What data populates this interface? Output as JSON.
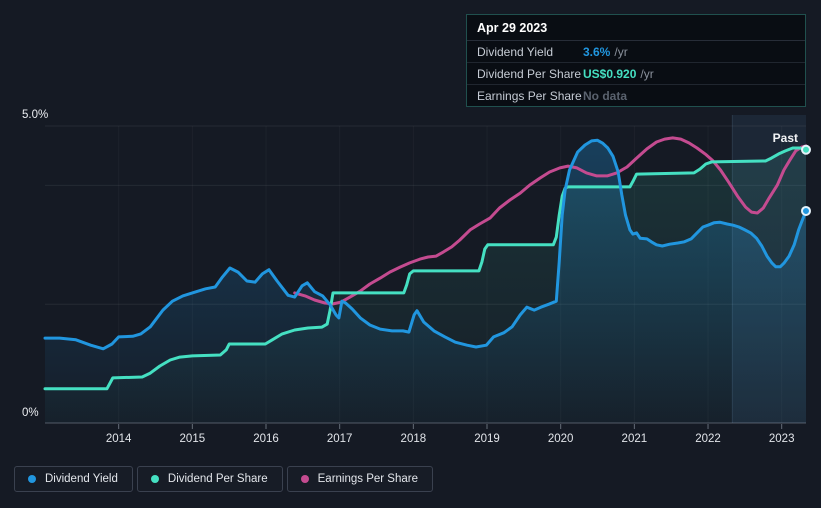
{
  "colors": {
    "background": "#151a24",
    "dividend_yield_blue": "#2196df",
    "dividend_per_share_teal": "#45e0c2",
    "earnings_per_share_pink": "#c44b90",
    "tooltip_border_teal": "#20504e",
    "gridline": "#232a36",
    "axis_text": "#e2e5ea"
  },
  "tooltip": {
    "date": "Apr 29 2023",
    "rows": [
      {
        "label": "Dividend Yield",
        "value": "3.6%",
        "suffix": "/yr",
        "value_color": "#2196df"
      },
      {
        "label": "Dividend Per Share",
        "value": "US$0.920",
        "suffix": "/yr",
        "value_color": "#45e0c2"
      },
      {
        "label": "Earnings Per Share",
        "value": "No data",
        "suffix": "",
        "value_color": "#5a626e"
      }
    ]
  },
  "legend": {
    "items": [
      {
        "label": "Dividend Yield",
        "color": "#2196df"
      },
      {
        "label": "Dividend Per Share",
        "color": "#45e0c2"
      },
      {
        "label": "Earnings Per Share",
        "color": "#c44b90"
      }
    ]
  },
  "chart_data": {
    "type": "line",
    "x_range": [
      2013.0,
      2023.33
    ],
    "x_ticks": [
      2014,
      2015,
      2016,
      2017,
      2018,
      2019,
      2020,
      2021,
      2022,
      2023
    ],
    "pct_range": [
      0,
      5
    ],
    "usd_range": [
      0,
      1
    ],
    "y_labels": [
      {
        "text": "5.0%",
        "pct": 5
      },
      {
        "text": "0%",
        "pct": 0
      }
    ],
    "h_gridlines_pct": [
      5,
      4,
      2
    ],
    "past_region": {
      "start_year": 2022.33,
      "label": "Past"
    },
    "series": [
      {
        "name": "Dividend Yield",
        "unit": "percent",
        "color": "#2196df",
        "fill": true,
        "end_dot": true,
        "points": [
          [
            2013.0,
            1.43
          ],
          [
            2013.2,
            1.43
          ],
          [
            2013.42,
            1.4
          ],
          [
            2013.62,
            1.31
          ],
          [
            2013.79,
            1.25
          ],
          [
            2013.91,
            1.33
          ],
          [
            2014.0,
            1.45
          ],
          [
            2014.19,
            1.46
          ],
          [
            2014.3,
            1.5
          ],
          [
            2014.43,
            1.62
          ],
          [
            2014.6,
            1.9
          ],
          [
            2014.73,
            2.05
          ],
          [
            2014.87,
            2.14
          ],
          [
            2015.0,
            2.19
          ],
          [
            2015.18,
            2.26
          ],
          [
            2015.31,
            2.29
          ],
          [
            2015.41,
            2.46
          ],
          [
            2015.51,
            2.61
          ],
          [
            2015.62,
            2.54
          ],
          [
            2015.74,
            2.39
          ],
          [
            2015.85,
            2.37
          ],
          [
            2015.95,
            2.51
          ],
          [
            2016.04,
            2.58
          ],
          [
            2016.15,
            2.39
          ],
          [
            2016.3,
            2.15
          ],
          [
            2016.39,
            2.12
          ],
          [
            2016.49,
            2.31
          ],
          [
            2016.56,
            2.36
          ],
          [
            2016.66,
            2.21
          ],
          [
            2016.77,
            2.14
          ],
          [
            2016.87,
            1.99
          ],
          [
            2016.95,
            1.82
          ],
          [
            2016.99,
            1.77
          ],
          [
            2017.03,
            2.05
          ],
          [
            2017.08,
            2.02
          ],
          [
            2017.17,
            1.92
          ],
          [
            2017.28,
            1.77
          ],
          [
            2017.41,
            1.65
          ],
          [
            2017.55,
            1.58
          ],
          [
            2017.71,
            1.55
          ],
          [
            2017.86,
            1.55
          ],
          [
            2017.94,
            1.53
          ],
          [
            2018.01,
            1.82
          ],
          [
            2018.05,
            1.89
          ],
          [
            2018.14,
            1.7
          ],
          [
            2018.28,
            1.55
          ],
          [
            2018.43,
            1.45
          ],
          [
            2018.57,
            1.36
          ],
          [
            2018.73,
            1.31
          ],
          [
            2018.85,
            1.28
          ],
          [
            2018.99,
            1.31
          ],
          [
            2019.09,
            1.45
          ],
          [
            2019.23,
            1.52
          ],
          [
            2019.34,
            1.62
          ],
          [
            2019.45,
            1.82
          ],
          [
            2019.54,
            1.95
          ],
          [
            2019.64,
            1.9
          ],
          [
            2019.73,
            1.95
          ],
          [
            2019.84,
            2.0
          ],
          [
            2019.94,
            2.05
          ],
          [
            2019.98,
            2.71
          ],
          [
            2020.02,
            3.5
          ],
          [
            2020.06,
            3.92
          ],
          [
            2020.12,
            4.26
          ],
          [
            2020.23,
            4.56
          ],
          [
            2020.33,
            4.68
          ],
          [
            2020.42,
            4.75
          ],
          [
            2020.5,
            4.76
          ],
          [
            2020.57,
            4.71
          ],
          [
            2020.64,
            4.63
          ],
          [
            2020.71,
            4.49
          ],
          [
            2020.78,
            4.23
          ],
          [
            2020.83,
            3.84
          ],
          [
            2020.88,
            3.5
          ],
          [
            2020.94,
            3.25
          ],
          [
            2020.98,
            3.18
          ],
          [
            2021.03,
            3.2
          ],
          [
            2021.08,
            3.11
          ],
          [
            2021.17,
            3.1
          ],
          [
            2021.23,
            3.05
          ],
          [
            2021.3,
            3.0
          ],
          [
            2021.38,
            2.98
          ],
          [
            2021.48,
            3.01
          ],
          [
            2021.59,
            3.03
          ],
          [
            2021.68,
            3.05
          ],
          [
            2021.77,
            3.1
          ],
          [
            2021.85,
            3.2
          ],
          [
            2021.93,
            3.3
          ],
          [
            2022.0,
            3.33
          ],
          [
            2022.08,
            3.37
          ],
          [
            2022.16,
            3.38
          ],
          [
            2022.26,
            3.35
          ],
          [
            2022.34,
            3.33
          ],
          [
            2022.42,
            3.3
          ],
          [
            2022.5,
            3.25
          ],
          [
            2022.58,
            3.2
          ],
          [
            2022.66,
            3.11
          ],
          [
            2022.73,
            2.98
          ],
          [
            2022.8,
            2.81
          ],
          [
            2022.87,
            2.69
          ],
          [
            2022.92,
            2.63
          ],
          [
            2022.98,
            2.63
          ],
          [
            2023.03,
            2.69
          ],
          [
            2023.1,
            2.81
          ],
          [
            2023.17,
            3.0
          ],
          [
            2023.23,
            3.25
          ],
          [
            2023.29,
            3.45
          ],
          [
            2023.33,
            3.57
          ]
        ]
      },
      {
        "name": "Dividend Per Share",
        "unit": "usd",
        "color": "#45e0c2",
        "fill": true,
        "end_dot": true,
        "points": [
          [
            2013.0,
            0.115
          ],
          [
            2013.84,
            0.115
          ],
          [
            2013.92,
            0.152
          ],
          [
            2014.32,
            0.155
          ],
          [
            2014.43,
            0.168
          ],
          [
            2014.56,
            0.192
          ],
          [
            2014.7,
            0.212
          ],
          [
            2014.83,
            0.222
          ],
          [
            2015.0,
            0.226
          ],
          [
            2015.38,
            0.229
          ],
          [
            2015.46,
            0.246
          ],
          [
            2015.5,
            0.266
          ],
          [
            2015.99,
            0.266
          ],
          [
            2016.08,
            0.279
          ],
          [
            2016.22,
            0.3
          ],
          [
            2016.39,
            0.313
          ],
          [
            2016.57,
            0.32
          ],
          [
            2016.76,
            0.323
          ],
          [
            2016.83,
            0.333
          ],
          [
            2016.87,
            0.38
          ],
          [
            2016.91,
            0.438
          ],
          [
            2017.87,
            0.438
          ],
          [
            2017.91,
            0.465
          ],
          [
            2017.95,
            0.502
          ],
          [
            2018.0,
            0.512
          ],
          [
            2018.89,
            0.512
          ],
          [
            2018.93,
            0.542
          ],
          [
            2018.97,
            0.586
          ],
          [
            2019.01,
            0.6
          ],
          [
            2019.9,
            0.6
          ],
          [
            2019.94,
            0.626
          ],
          [
            2019.98,
            0.7
          ],
          [
            2020.02,
            0.764
          ],
          [
            2020.06,
            0.791
          ],
          [
            2020.1,
            0.795
          ],
          [
            2020.94,
            0.795
          ],
          [
            2020.99,
            0.818
          ],
          [
            2021.03,
            0.838
          ],
          [
            2021.81,
            0.842
          ],
          [
            2021.89,
            0.855
          ],
          [
            2021.97,
            0.872
          ],
          [
            2022.05,
            0.879
          ],
          [
            2022.78,
            0.882
          ],
          [
            2022.86,
            0.892
          ],
          [
            2022.96,
            0.906
          ],
          [
            2023.05,
            0.916
          ],
          [
            2023.15,
            0.926
          ],
          [
            2023.25,
            0.926
          ],
          [
            2023.33,
            0.92
          ]
        ]
      },
      {
        "name": "Earnings Per Share",
        "unit": "usd",
        "color": "#c44b90",
        "fill": false,
        "end_dot": false,
        "points": [
          [
            2016.39,
            0.438
          ],
          [
            2016.53,
            0.428
          ],
          [
            2016.66,
            0.414
          ],
          [
            2016.8,
            0.404
          ],
          [
            2016.91,
            0.401
          ],
          [
            2017.02,
            0.407
          ],
          [
            2017.14,
            0.424
          ],
          [
            2017.28,
            0.444
          ],
          [
            2017.41,
            0.468
          ],
          [
            2017.55,
            0.488
          ],
          [
            2017.68,
            0.508
          ],
          [
            2017.82,
            0.525
          ],
          [
            2017.95,
            0.539
          ],
          [
            2018.09,
            0.552
          ],
          [
            2018.2,
            0.559
          ],
          [
            2018.31,
            0.562
          ],
          [
            2018.41,
            0.576
          ],
          [
            2018.52,
            0.593
          ],
          [
            2018.63,
            0.616
          ],
          [
            2018.77,
            0.65
          ],
          [
            2018.9,
            0.67
          ],
          [
            2019.04,
            0.69
          ],
          [
            2019.17,
            0.724
          ],
          [
            2019.31,
            0.751
          ],
          [
            2019.45,
            0.774
          ],
          [
            2019.58,
            0.801
          ],
          [
            2019.72,
            0.825
          ],
          [
            2019.85,
            0.845
          ],
          [
            2019.99,
            0.859
          ],
          [
            2020.1,
            0.865
          ],
          [
            2020.22,
            0.859
          ],
          [
            2020.35,
            0.842
          ],
          [
            2020.49,
            0.832
          ],
          [
            2020.63,
            0.832
          ],
          [
            2020.76,
            0.842
          ],
          [
            2020.9,
            0.862
          ],
          [
            2021.03,
            0.892
          ],
          [
            2021.17,
            0.923
          ],
          [
            2021.3,
            0.946
          ],
          [
            2021.41,
            0.956
          ],
          [
            2021.52,
            0.96
          ],
          [
            2021.63,
            0.956
          ],
          [
            2021.74,
            0.943
          ],
          [
            2021.85,
            0.926
          ],
          [
            2021.96,
            0.906
          ],
          [
            2022.06,
            0.885
          ],
          [
            2022.17,
            0.852
          ],
          [
            2022.28,
            0.811
          ],
          [
            2022.4,
            0.764
          ],
          [
            2022.51,
            0.727
          ],
          [
            2022.59,
            0.71
          ],
          [
            2022.67,
            0.707
          ],
          [
            2022.75,
            0.724
          ],
          [
            2022.83,
            0.758
          ],
          [
            2022.94,
            0.801
          ],
          [
            2023.03,
            0.852
          ],
          [
            2023.11,
            0.885
          ],
          [
            2023.19,
            0.916
          ],
          [
            2023.27,
            0.929
          ],
          [
            2023.33,
            0.933
          ]
        ]
      }
    ]
  }
}
